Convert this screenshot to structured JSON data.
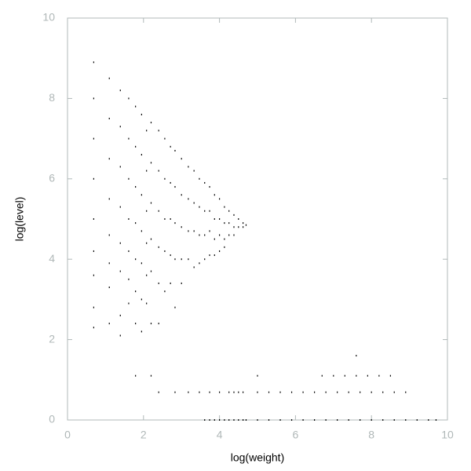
{
  "chart_data": {
    "type": "scatter",
    "x_label": "log(weight)",
    "y_label": "log(level)",
    "xlim": [
      0,
      10
    ],
    "ylim": [
      0,
      10
    ],
    "xticks": [
      0,
      2,
      4,
      6,
      8,
      10
    ],
    "yticks": [
      0,
      2,
      4,
      6,
      8,
      10
    ],
    "color": "#000000",
    "x": [
      0.69,
      0.69,
      0.69,
      0.69,
      0.69,
      0.69,
      0.69,
      0.69,
      0.69,
      1.1,
      1.1,
      1.1,
      1.1,
      1.1,
      1.1,
      1.1,
      1.1,
      1.39,
      1.39,
      1.39,
      1.39,
      1.39,
      1.39,
      1.39,
      1.39,
      1.61,
      1.61,
      1.61,
      1.61,
      1.61,
      1.61,
      1.61,
      1.79,
      1.79,
      1.79,
      1.79,
      1.79,
      1.79,
      1.79,
      1.79,
      1.95,
      1.95,
      1.95,
      1.95,
      1.95,
      1.95,
      1.95,
      2.08,
      2.08,
      2.08,
      2.08,
      2.08,
      2.08,
      2.2,
      2.2,
      2.2,
      2.2,
      2.2,
      2.2,
      2.2,
      2.4,
      2.4,
      2.4,
      2.4,
      2.4,
      2.4,
      2.4,
      2.56,
      2.56,
      2.56,
      2.56,
      2.56,
      2.71,
      2.71,
      2.71,
      2.71,
      2.71,
      2.83,
      2.83,
      2.83,
      2.83,
      2.83,
      2.83,
      3.0,
      3.0,
      3.0,
      3.0,
      3.0,
      3.18,
      3.18,
      3.18,
      3.18,
      3.18,
      3.33,
      3.33,
      3.33,
      3.33,
      3.47,
      3.47,
      3.47,
      3.47,
      3.47,
      3.61,
      3.61,
      3.61,
      3.61,
      3.61,
      3.74,
      3.74,
      3.74,
      3.74,
      3.74,
      3.74,
      3.87,
      3.87,
      3.87,
      3.87,
      3.87,
      4.0,
      4.0,
      4.0,
      4.0,
      4.0,
      4.0,
      4.13,
      4.13,
      4.13,
      4.13,
      4.13,
      4.25,
      4.25,
      4.25,
      4.25,
      4.25,
      4.38,
      4.38,
      4.38,
      4.38,
      4.38,
      4.5,
      4.5,
      4.5,
      4.5,
      4.62,
      4.62,
      4.62,
      4.62,
      4.7,
      4.7,
      5.0,
      5.3,
      5.6,
      5.9,
      6.2,
      6.5,
      6.8,
      7.1,
      7.4,
      7.7,
      8.0,
      8.3,
      8.6,
      8.9,
      9.2,
      9.5,
      9.7,
      5.0,
      5.3,
      5.6,
      5.9,
      6.2,
      6.5,
      6.8,
      7.1,
      7.4,
      7.7,
      8.0,
      8.3,
      8.6,
      8.9,
      5.0,
      6.7,
      7.0,
      7.3,
      7.6,
      7.9,
      8.2,
      8.5,
      7.6
    ],
    "values": [
      8.9,
      8.0,
      7.0,
      6.0,
      5.0,
      4.2,
      3.6,
      2.8,
      2.3,
      8.5,
      7.5,
      6.5,
      5.5,
      4.6,
      3.9,
      3.3,
      2.4,
      8.2,
      7.3,
      6.3,
      5.3,
      4.4,
      3.7,
      2.6,
      2.1,
      8.0,
      7.0,
      6.0,
      5.0,
      4.2,
      3.5,
      2.9,
      7.8,
      6.8,
      5.8,
      4.9,
      4.0,
      3.2,
      2.4,
      1.1,
      7.6,
      6.6,
      5.6,
      4.7,
      3.9,
      3.0,
      2.2,
      7.2,
      6.2,
      5.2,
      4.4,
      3.6,
      2.9,
      7.4,
      6.4,
      5.4,
      4.5,
      3.7,
      2.4,
      1.1,
      7.2,
      6.2,
      5.2,
      4.3,
      3.4,
      2.4,
      0.69,
      7.0,
      6.0,
      5.0,
      4.2,
      3.2,
      6.8,
      5.9,
      5.0,
      4.1,
      3.4,
      6.7,
      5.8,
      4.9,
      4.0,
      2.8,
      0.69,
      6.5,
      5.6,
      4.8,
      4.0,
      3.4,
      6.3,
      5.5,
      4.7,
      4.0,
      0.69,
      6.2,
      5.4,
      4.7,
      3.8,
      6.0,
      5.3,
      4.6,
      3.9,
      0.69,
      5.9,
      5.2,
      4.6,
      4.0,
      0.0,
      5.8,
      5.2,
      4.7,
      4.1,
      0.0,
      0.69,
      5.6,
      5.0,
      4.5,
      4.1,
      0.0,
      5.5,
      5.0,
      4.6,
      4.2,
      0.0,
      0.69,
      5.3,
      4.9,
      4.5,
      4.3,
      0.0,
      5.2,
      4.9,
      4.6,
      0.0,
      0.69,
      5.1,
      4.8,
      4.6,
      0.0,
      0.69,
      5.0,
      4.8,
      0.0,
      0.69,
      4.9,
      4.8,
      0.0,
      0.69,
      4.85,
      0.0,
      0.0,
      0.0,
      0.0,
      0.0,
      0.0,
      0.0,
      0.0,
      0.0,
      0.0,
      0.0,
      0.0,
      0.0,
      0.0,
      0.0,
      0.0,
      0.0,
      0.0,
      0.69,
      0.69,
      0.69,
      0.69,
      0.69,
      0.69,
      0.69,
      0.69,
      0.69,
      0.69,
      0.69,
      0.69,
      0.69,
      0.69,
      1.1,
      1.1,
      1.1,
      1.1,
      1.1,
      1.1,
      1.1,
      1.1,
      1.6
    ]
  }
}
